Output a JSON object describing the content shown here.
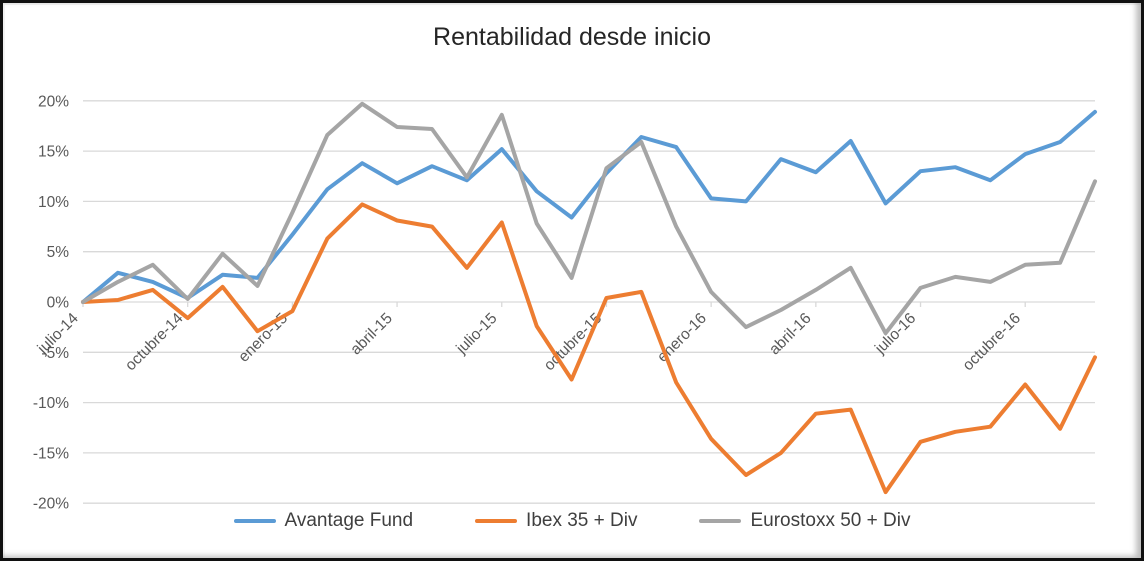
{
  "chart_data": {
    "type": "line",
    "title": "Rentabilidad desde inicio",
    "xlabel": "",
    "ylabel": "",
    "ylim": [
      -20,
      20
    ],
    "grid": "horizontal",
    "legend_position": "bottom",
    "n_points": 30,
    "x_tick_labels": [
      "julio-14",
      "octubre-14",
      "enero-15",
      "abril-15",
      "julio-15",
      "octubre-15",
      "enero-16",
      "abril-16",
      "julio-16",
      "octubre-16"
    ],
    "x_tick_month_indices": [
      0,
      3,
      6,
      9,
      12,
      15,
      18,
      21,
      24,
      27
    ],
    "y_ticks": [
      {
        "label": "20%",
        "value": 20
      },
      {
        "label": "15%",
        "value": 15
      },
      {
        "label": "10%",
        "value": 10
      },
      {
        "label": "5%",
        "value": 5
      },
      {
        "label": "0%",
        "value": 0
      },
      {
        "label": "-5%",
        "value": -5
      },
      {
        "label": "-10%",
        "value": -10
      },
      {
        "label": "-15%",
        "value": -15
      },
      {
        "label": "-20%",
        "value": -20
      }
    ],
    "series": [
      {
        "name": "Avantage Fund",
        "color": "#5B9BD5",
        "values": [
          0.0,
          2.9,
          2.0,
          0.4,
          2.7,
          2.4,
          6.7,
          11.2,
          13.8,
          11.8,
          13.5,
          12.1,
          15.2,
          11.0,
          8.4,
          12.8,
          16.4,
          15.4,
          10.3,
          10.0,
          14.2,
          12.9,
          16.0,
          9.8,
          13.0,
          13.4,
          12.1,
          14.7,
          15.9,
          18.9
        ]
      },
      {
        "name": "Ibex 35 + Div",
        "color": "#ED7D31",
        "values": [
          0.0,
          0.2,
          1.2,
          -1.6,
          1.5,
          -2.9,
          -0.9,
          6.3,
          9.7,
          8.1,
          7.5,
          3.4,
          7.9,
          -2.4,
          -7.7,
          0.4,
          1.0,
          -8.0,
          -13.6,
          -17.2,
          -15.0,
          -11.1,
          -10.7,
          -18.9,
          -13.9,
          -12.9,
          -12.4,
          -8.2,
          -12.6,
          -5.5
        ]
      },
      {
        "name": "Eurostoxx 50 + Div",
        "color": "#A5A5A5",
        "values": [
          0.0,
          2.0,
          3.7,
          0.3,
          4.8,
          1.6,
          8.9,
          16.6,
          19.7,
          17.4,
          17.2,
          12.4,
          18.6,
          7.8,
          2.4,
          13.3,
          15.9,
          7.5,
          1.0,
          -2.5,
          -0.8,
          1.2,
          3.4,
          -3.1,
          1.4,
          2.5,
          2.0,
          3.7,
          3.9,
          12.0
        ]
      }
    ]
  },
  "colors": {
    "grid": "#D9D9D9",
    "axis_text": "#595959",
    "title_text": "#262626",
    "legend_text": "#3F3F3F"
  }
}
